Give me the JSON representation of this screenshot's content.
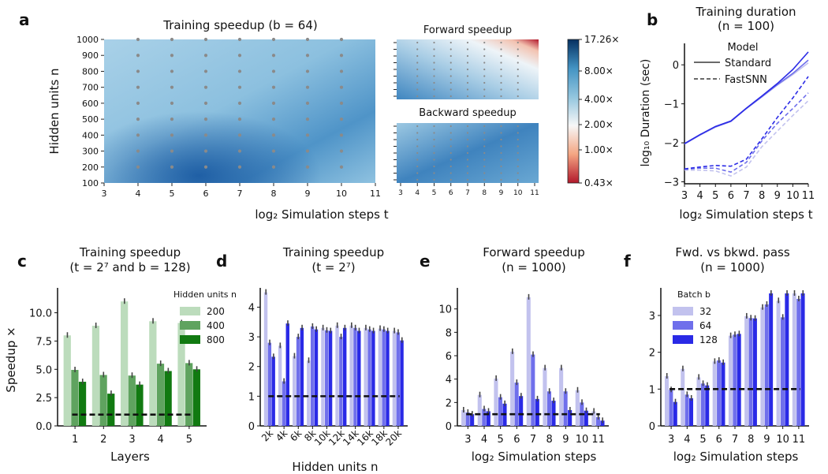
{
  "colors": {
    "light": "#c2c2ee",
    "mid": "#6f6feb",
    "dark": "#2a2ae6",
    "g1": "#bcdcbc",
    "g2": "#5fa35f",
    "g3": "#117a11",
    "dot": "#8a8a8a"
  },
  "panels": {
    "a": {
      "letter": "a",
      "title": "Training speedup (b = 64)",
      "xlabel": "log₂ Simulation steps t",
      "ylabel": "Hidden units n",
      "x_ticks": [
        "3",
        "4",
        "5",
        "6",
        "7",
        "8",
        "9",
        "10",
        "11"
      ],
      "y_ticks": [
        "100",
        "200",
        "300",
        "400",
        "500",
        "600",
        "700",
        "800",
        "900",
        "1000"
      ],
      "fwd_title": "Forward speedup",
      "bwd_title": "Backward speedup",
      "colorbar_ticks": [
        "17.26×",
        "8.00×",
        "4.00×",
        "2.00×",
        "1.00×",
        "0.43×"
      ]
    },
    "b": {
      "letter": "b",
      "title_line1": "Training duration",
      "title_line2": "(n = 100)",
      "xlabel": "log₂ Simulation steps t",
      "ylabel": "log₁₀ Duration (sec)",
      "legend_title": "Model",
      "legend": [
        "Standard",
        "FastSNN"
      ]
    },
    "c": {
      "letter": "c",
      "title_line1": "Training speedup",
      "title_line2": "(t = 2⁷ and b = 128)",
      "xlabel": "Layers",
      "ylabel": "Speedup ×",
      "legend_title": "Hidden units n",
      "legend": [
        "200",
        "400",
        "800"
      ]
    },
    "d": {
      "letter": "d",
      "title_line1": "Training speedup",
      "title_line2": "(t = 2⁷)",
      "xlabel": "Hidden units n"
    },
    "e": {
      "letter": "e",
      "title_line1": "Forward speedup",
      "title_line2": "(n = 1000)",
      "xlabel": "log₂ Simulation steps"
    },
    "f": {
      "letter": "f",
      "title_line1": "Fwd. vs bkwd. pass",
      "title_line2": "(n = 1000)",
      "xlabel": "log₂ Simulation steps",
      "legend_title": "Batch b",
      "legend": [
        "32",
        "64",
        "128"
      ]
    }
  },
  "chart_data": [
    {
      "panel": "b",
      "type": "line",
      "x": [
        3,
        4,
        5,
        6,
        7,
        8,
        9,
        10,
        11
      ],
      "xlim": [
        3,
        11
      ],
      "ylim": [
        -3.05,
        0.55
      ],
      "yticks": [
        -3,
        -2,
        -1,
        0
      ],
      "series": [
        {
          "name": "Standard",
          "style": "solid",
          "shade": "light",
          "values": [
            -2.03,
            -1.8,
            -1.6,
            -1.45,
            -1.12,
            -0.82,
            -0.52,
            -0.25,
            0.05
          ]
        },
        {
          "name": "Standard",
          "style": "solid",
          "shade": "mid",
          "values": [
            -2.03,
            -1.8,
            -1.59,
            -1.45,
            -1.12,
            -0.82,
            -0.51,
            -0.22,
            0.12
          ]
        },
        {
          "name": "Standard",
          "style": "solid",
          "shade": "dark",
          "values": [
            -2.02,
            -1.79,
            -1.58,
            -1.44,
            -1.11,
            -0.8,
            -0.48,
            -0.12,
            0.33
          ]
        },
        {
          "name": "FastSNN",
          "style": "dashed",
          "shade": "light",
          "values": [
            -2.7,
            -2.7,
            -2.72,
            -2.85,
            -2.62,
            -2.1,
            -1.7,
            -1.3,
            -0.92
          ]
        },
        {
          "name": "FastSNN",
          "style": "dashed",
          "shade": "mid",
          "values": [
            -2.68,
            -2.65,
            -2.65,
            -2.75,
            -2.5,
            -1.95,
            -1.5,
            -1.12,
            -0.72
          ]
        },
        {
          "name": "FastSNN",
          "style": "dashed",
          "shade": "dark",
          "values": [
            -2.67,
            -2.62,
            -2.58,
            -2.6,
            -2.42,
            -1.9,
            -1.35,
            -0.85,
            -0.3
          ]
        }
      ]
    },
    {
      "panel": "c",
      "type": "bar",
      "categories": [
        "1",
        "2",
        "3",
        "4",
        "5"
      ],
      "ylim": [
        0,
        12.2
      ],
      "yticks": [
        0.0,
        2.5,
        5.0,
        7.5,
        10.0
      ],
      "baseline": 1.0,
      "series": [
        {
          "name": "200",
          "values": [
            8.0,
            8.85,
            11.0,
            9.25,
            9.1
          ]
        },
        {
          "name": "400",
          "values": [
            4.95,
            4.5,
            4.45,
            5.5,
            5.55
          ]
        },
        {
          "name": "800",
          "values": [
            3.9,
            2.85,
            3.65,
            4.85,
            5.0
          ]
        }
      ]
    },
    {
      "panel": "d",
      "type": "bar",
      "categories": [
        "2k",
        "4k",
        "6k",
        "8k",
        "10k",
        "12k",
        "14k",
        "16k",
        "18k",
        "20k"
      ],
      "ylim": [
        0,
        4.65
      ],
      "yticks": [
        0,
        1,
        2,
        3,
        4
      ],
      "baseline": 1.0,
      "series": [
        {
          "name": "32",
          "values": [
            4.5,
            2.7,
            2.35,
            2.2,
            3.3,
            3.38,
            3.38,
            3.3,
            3.28,
            3.2
          ]
        },
        {
          "name": "64",
          "values": [
            2.8,
            1.5,
            3.0,
            3.35,
            3.22,
            3.0,
            3.3,
            3.25,
            3.25,
            3.15
          ]
        },
        {
          "name": "128",
          "values": [
            2.33,
            3.45,
            3.3,
            3.25,
            3.2,
            3.3,
            3.2,
            3.2,
            3.2,
            2.88
          ]
        }
      ]
    },
    {
      "panel": "e",
      "type": "bar",
      "categories": [
        "3",
        "4",
        "5",
        "6",
        "7",
        "8",
        "9",
        "10",
        "11"
      ],
      "ylim": [
        0,
        11.8
      ],
      "yticks": [
        0,
        2,
        4,
        6,
        8,
        10
      ],
      "baseline": 1.0,
      "series": [
        {
          "name": "32",
          "values": [
            1.35,
            2.65,
            4.05,
            6.35,
            11.0,
            4.95,
            4.95,
            3.05,
            1.25
          ]
        },
        {
          "name": "64",
          "values": [
            1.15,
            1.45,
            2.45,
            3.7,
            6.1,
            2.95,
            2.95,
            2.0,
            0.75
          ]
        },
        {
          "name": "128",
          "values": [
            1.0,
            1.25,
            1.9,
            2.55,
            2.3,
            2.15,
            1.35,
            1.3,
            0.45
          ]
        }
      ]
    },
    {
      "panel": "f",
      "type": "bar",
      "categories": [
        "3",
        "4",
        "5",
        "6",
        "7",
        "8",
        "9",
        "10",
        "11"
      ],
      "ylim": [
        0,
        3.75
      ],
      "yticks": [
        0,
        1,
        2,
        3
      ],
      "baseline": 1.0,
      "series": [
        {
          "name": "32",
          "values": [
            1.35,
            1.55,
            1.32,
            1.75,
            2.45,
            2.98,
            3.22,
            3.4,
            3.6
          ]
        },
        {
          "name": "64",
          "values": [
            0.98,
            0.85,
            1.15,
            1.78,
            2.48,
            2.93,
            3.3,
            2.95,
            3.45
          ]
        },
        {
          "name": "128",
          "values": [
            0.65,
            0.75,
            1.1,
            1.72,
            2.5,
            2.92,
            3.6,
            3.6,
            3.6
          ]
        }
      ]
    }
  ]
}
